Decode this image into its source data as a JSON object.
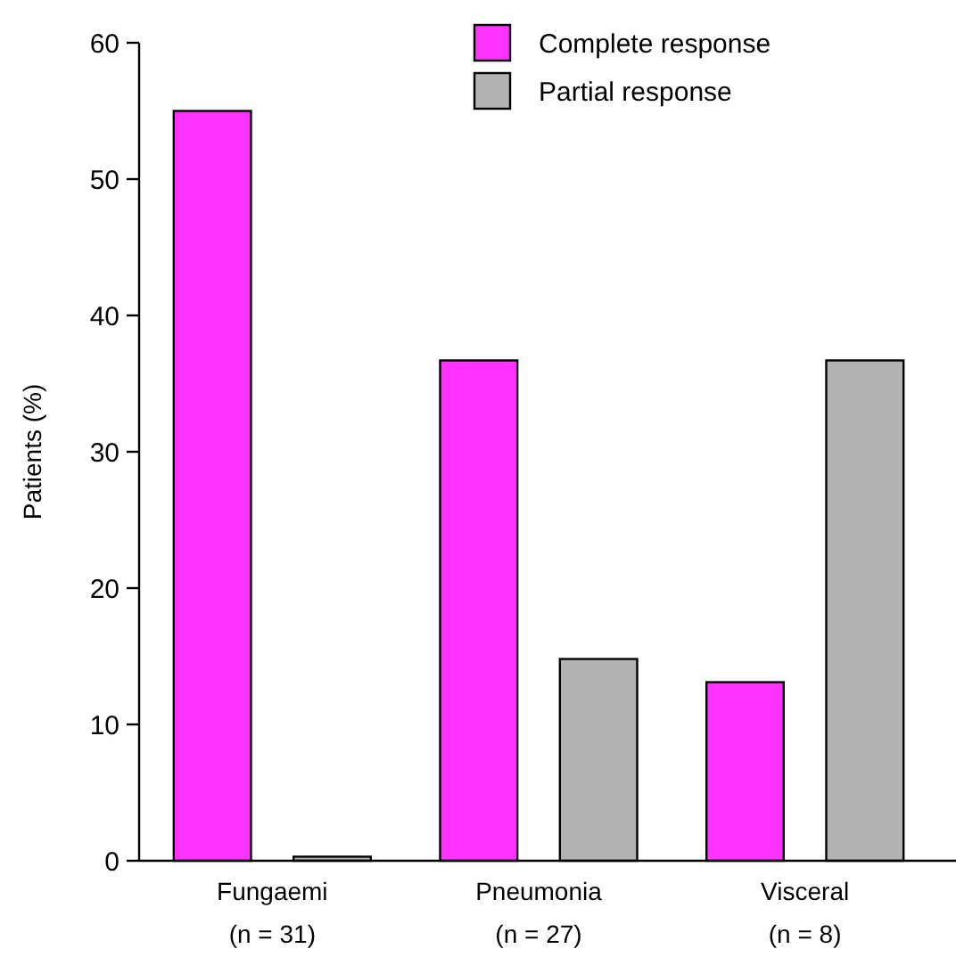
{
  "chart_data": {
    "type": "bar",
    "ylabel": "Patients (%)",
    "categories": [
      "Fungaemi\n(n = 31)",
      "Pneumonia\n(n = 27)",
      "Visceral\n(n = 8)"
    ],
    "series": [
      {
        "name": "Complete response",
        "color": "#ff33ff",
        "values": [
          55.0,
          36.7,
          13.1
        ]
      },
      {
        "name": "Partial response",
        "color": "#b3b3b3",
        "values": [
          0.3,
          14.8,
          36.7
        ]
      }
    ],
    "ylim": [
      0,
      60
    ],
    "yticks": [
      0,
      10,
      20,
      30,
      40,
      50,
      60
    ],
    "grid": false,
    "legend": "top right"
  }
}
